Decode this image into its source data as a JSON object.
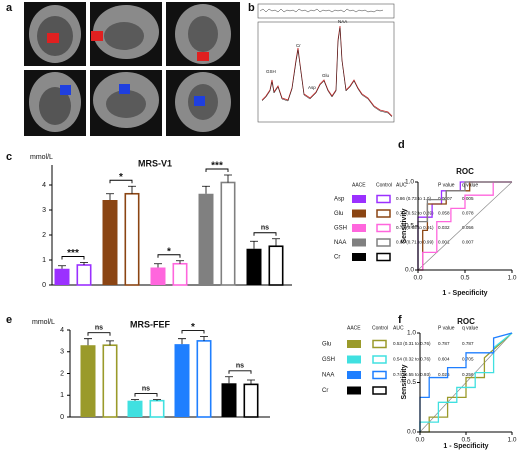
{
  "panel_a": {
    "label": "a"
  },
  "panel_b": {
    "label": "b",
    "peaks": [
      "NAA",
      "Cr",
      "GSH",
      "Glu",
      "Asp"
    ]
  },
  "chart_data": [
    {
      "type": "bar",
      "panel": "c",
      "title": "MRS-V1",
      "y_label": "mmol/L",
      "categories": [
        "Asp",
        "Glu",
        "GSH",
        "NAA",
        "Cr"
      ],
      "colors": [
        "#9b30ff",
        "#8b4513",
        "#ff66dd",
        "#808080",
        "#000000"
      ],
      "series": [
        {
          "name": "AACE",
          "values": [
            0.65,
            3.4,
            0.7,
            3.65,
            1.45
          ],
          "errors": [
            0.12,
            0.25,
            0.15,
            0.3,
            0.3
          ]
        },
        {
          "name": "Control",
          "values": [
            0.8,
            3.65,
            0.85,
            4.1,
            1.55
          ],
          "errors": [
            0.1,
            0.3,
            0.12,
            0.3,
            0.3
          ]
        }
      ],
      "annotations": [
        "***",
        "*",
        "*",
        "***",
        "ns"
      ],
      "ylim": [
        0,
        4.8
      ],
      "yticks": [
        0,
        1,
        2,
        3,
        4
      ],
      "table": {
        "columns": [
          "AACE",
          "Control",
          "AUC",
          "P value",
          "q value"
        ],
        "rows": [
          [
            "0.86 (0.73 to 1.0)",
            "0.0007",
            "0.005"
          ],
          [
            "0.70 (0.52 to 0.89)",
            "0.058",
            "0.078"
          ],
          [
            "0.73 (0.55 to 0.91)",
            "0.032",
            "0.056"
          ],
          [
            "0.85 (0.71 to 0.99)",
            "0.001",
            "0.007"
          ]
        ]
      }
    },
    {
      "type": "line",
      "panel": "d",
      "title": "ROC",
      "x_label": "1 - Specificity",
      "y_label": "Sensitivity",
      "xlim": [
        0,
        1
      ],
      "ylim": [
        0,
        1
      ],
      "xticks": [
        {
          "value": 0,
          "label": "0.0"
        },
        {
          "value": 0.5,
          "label": "0.5"
        },
        {
          "value": 1,
          "label": "1.0"
        }
      ],
      "yticks": [
        {
          "value": 0,
          "label": "0.0"
        },
        {
          "value": 0.5,
          "label": "0.5"
        },
        {
          "value": 1,
          "label": "1.0"
        }
      ],
      "series": [
        {
          "color": "#9b30ff",
          "x": [
            0,
            0,
            0.15,
            0.15,
            0.25,
            0.25,
            0.45,
            0.45,
            1
          ],
          "y": [
            0,
            0.6,
            0.6,
            0.75,
            0.75,
            0.9,
            0.9,
            1,
            1
          ]
        },
        {
          "color": "#8b4513",
          "x": [
            0,
            0.05,
            0.05,
            0.1,
            0.1,
            0.3,
            0.3,
            0.55,
            0.55,
            1
          ],
          "y": [
            0,
            0,
            0.45,
            0.45,
            0.75,
            0.75,
            0.9,
            0.9,
            1,
            1
          ]
        },
        {
          "color": "#ff66dd",
          "x": [
            0,
            0.05,
            0.05,
            0.2,
            0.2,
            0.35,
            0.35,
            0.5,
            0.5,
            0.8,
            0.8,
            1
          ],
          "y": [
            0,
            0,
            0.2,
            0.2,
            0.55,
            0.55,
            0.7,
            0.7,
            0.85,
            0.85,
            1,
            1
          ]
        },
        {
          "color": "#808080",
          "x": [
            0,
            0,
            0.1,
            0.1,
            0.3,
            0.3,
            0.5,
            0.5,
            1
          ],
          "y": [
            0,
            0.55,
            0.55,
            0.8,
            0.8,
            0.9,
            0.9,
            1,
            1
          ]
        }
      ]
    },
    {
      "type": "bar",
      "panel": "e",
      "title": "MRS-FEF",
      "y_label": "mmol/L",
      "categories": [
        "Glu",
        "GSH",
        "NAA",
        "Cr"
      ],
      "colors": [
        "#9a9a2a",
        "#40e0e0",
        "#1f7fff",
        "#000000"
      ],
      "series": [
        {
          "name": "AACE",
          "values": [
            3.3,
            0.75,
            3.35,
            1.55
          ],
          "errors": [
            0.3,
            0.05,
            0.25,
            0.3
          ]
        },
        {
          "name": "Control",
          "values": [
            3.3,
            0.75,
            3.5,
            1.5
          ],
          "errors": [
            0.2,
            0.05,
            0.2,
            0.2
          ]
        }
      ],
      "annotations": [
        "ns",
        "ns",
        "*",
        "ns"
      ],
      "ylim": [
        0,
        4
      ],
      "yticks": [
        0,
        1,
        2,
        3,
        4
      ],
      "table": {
        "columns": [
          "AACE",
          "Control",
          "AUC",
          "P value",
          "q value"
        ],
        "rows": [
          [
            "0.53 (0.31 to 0.76)",
            "0.787",
            "0.787"
          ],
          [
            "0.54 (0.32 to 0.76)",
            "0.604",
            "0.705"
          ],
          [
            "0.74 (0.55 to 0.93)",
            "0.026",
            "0.256"
          ]
        ]
      }
    },
    {
      "type": "line",
      "panel": "f",
      "title": "ROC",
      "x_label": "1 - Specificity",
      "y_label": "Sensitivity",
      "xlim": [
        0,
        1
      ],
      "ylim": [
        0,
        1
      ],
      "xticks": [
        {
          "value": 0,
          "label": "0.0"
        },
        {
          "value": 0.5,
          "label": "0.5"
        },
        {
          "value": 1,
          "label": "1.0"
        }
      ],
      "yticks": [
        {
          "value": 0,
          "label": "0.0"
        },
        {
          "value": 0.5,
          "label": "0.5"
        },
        {
          "value": 1,
          "label": "1.0"
        }
      ],
      "series": [
        {
          "color": "#9a9a2a",
          "x": [
            0,
            0.1,
            0.1,
            0.3,
            0.3,
            0.5,
            0.5,
            0.7,
            0.7,
            1
          ],
          "y": [
            0,
            0,
            0.15,
            0.15,
            0.35,
            0.35,
            0.55,
            0.55,
            0.75,
            1
          ]
        },
        {
          "color": "#40e0e0",
          "x": [
            0,
            0,
            0.2,
            0.2,
            0.4,
            0.4,
            0.6,
            0.6,
            0.8,
            0.8,
            1
          ],
          "y": [
            0,
            0.1,
            0.1,
            0.3,
            0.3,
            0.45,
            0.45,
            0.6,
            0.6,
            0.85,
            1
          ]
        },
        {
          "color": "#1f7fff",
          "x": [
            0,
            0,
            0.1,
            0.1,
            0.3,
            0.3,
            0.5,
            0.5,
            0.8,
            0.8,
            1
          ],
          "y": [
            0,
            0.35,
            0.35,
            0.55,
            0.55,
            0.65,
            0.65,
            0.8,
            0.8,
            0.95,
            1
          ]
        }
      ]
    }
  ]
}
